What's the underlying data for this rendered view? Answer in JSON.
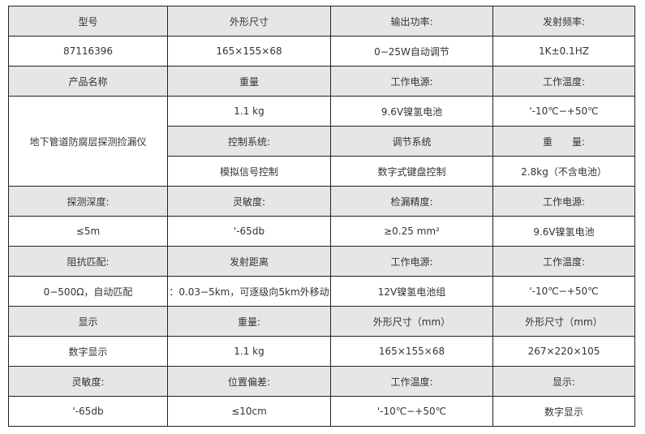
{
  "rows": [
    [
      "型号",
      "外形尺寸",
      "输出功率:",
      "发射频率:"
    ],
    [
      "87116396",
      "165×155×68",
      "0−25W自动调节",
      "1K±0.1HZ"
    ],
    [
      "产品名称",
      "重量",
      "工作电源:",
      "工作温度:"
    ],
    [
      "地下管道防腐层探测捡漏仪",
      "1.1 kg",
      "9.6V镍氢电池",
      "'-10℃−+50℃"
    ],
    [
      "控制系统:",
      "调节系统",
      "重　　量:"
    ],
    [
      "模拟信号控制",
      "数字式键盘控制",
      "2.8kg（不含电池）"
    ],
    [
      "探测深度:",
      "灵敏度:",
      "检漏精度:",
      "工作电源:"
    ],
    [
      "≤5m",
      "'-65db",
      "≥0.25 mm²",
      "9.6V镍氢电池"
    ],
    [
      "阻抗匹配:",
      "发射距离",
      "工作电源:",
      "工作温度:"
    ],
    [
      "0−500Ω，自动匹配",
      "：0.03−5km，可逐级向5km外移动",
      "12V镍氢电池组",
      "'-10℃−+50℃"
    ],
    [
      "显示",
      "重量:",
      "外形尺寸（mm）",
      "外形尺寸（mm）"
    ],
    [
      "数字显示",
      "1.1 kg",
      "165×155×68",
      "267×220×105"
    ],
    [
      "灵敏度:",
      "位置偏差:",
      "工作温度:",
      "显示:"
    ],
    [
      "'-65db",
      "≤10cm",
      "'-10℃−+50℃",
      "数字显示"
    ]
  ],
  "colors": {
    "header_bg": "#e6e6e6",
    "border": "#222222",
    "text": "#333333"
  }
}
